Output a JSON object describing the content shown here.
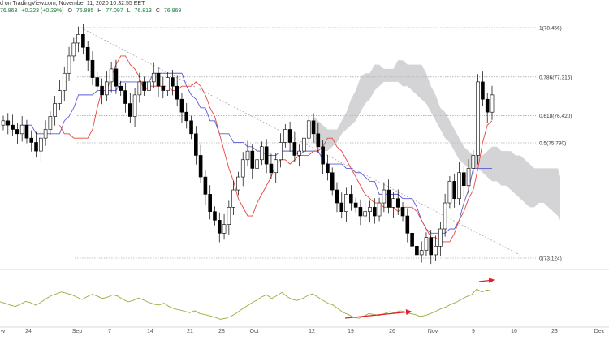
{
  "header": {
    "published": "d on TradingView.com, November 11, 2020 10:32:55 EET",
    "ohlc": {
      "o_val": "76.863",
      "change": "+0.223 (+0.29%)",
      "o_label": "O",
      "o2": "76.895",
      "h_label": "H",
      "h": "77.097",
      "l_label": "L",
      "l": "76.813",
      "c_label": "C",
      "c": "76.869"
    }
  },
  "chart_data": {
    "type": "candlestick",
    "x_ticks": [
      "24",
      "Sep",
      "7",
      "14",
      "21",
      "28",
      "Oct",
      "12",
      "19",
      "26",
      "Nov",
      "9",
      "16",
      "23",
      "Dec"
    ],
    "axis_left_label": "w",
    "fib_levels": [
      {
        "label": "1(78.456)",
        "value": 78.456
      },
      {
        "label": "0.786(77.315)",
        "value": 77.315
      },
      {
        "label": "0.618(76.420)",
        "value": 76.42
      },
      {
        "label": "0.5(75.790)",
        "value": 75.79
      },
      {
        "label": "0(73.124)",
        "value": 73.124
      }
    ],
    "price_close": [
      76.3,
      76.2,
      76.1,
      76.0,
      76.2,
      75.9,
      75.8,
      75.6,
      75.9,
      76.1,
      76.4,
      76.7,
      77.0,
      77.4,
      77.8,
      78.1,
      78.3,
      78.0,
      77.7,
      77.3,
      77.1,
      76.9,
      77.2,
      77.5,
      77.1,
      77.0,
      76.7,
      76.4,
      76.9,
      77.2,
      77.0,
      77.2,
      77.4,
      77.1,
      77.0,
      77.3,
      77.1,
      76.8,
      76.5,
      76.3,
      76.0,
      75.5,
      75.0,
      74.6,
      74.2,
      74.0,
      73.7,
      73.9,
      74.3,
      74.7,
      75.0,
      75.4,
      75.6,
      75.2,
      75.4,
      75.7,
      75.3,
      75.1,
      75.4,
      75.8,
      76.1,
      75.8,
      75.5,
      75.6,
      75.9,
      76.3,
      76.0,
      75.7,
      75.3,
      75.1,
      74.7,
      74.4,
      74.2,
      74.6,
      74.4,
      74.3,
      74.1,
      74.2,
      74.3,
      74.1,
      74.4,
      74.7,
      74.3,
      74.5,
      74.3,
      74.1,
      73.7,
      73.4,
      73.2,
      73.3,
      73.6,
      73.2,
      73.4,
      73.8,
      74.4,
      74.9,
      74.5,
      75.1,
      74.8,
      75.2,
      75.5,
      77.2,
      76.8,
      76.5,
      76.9
    ],
    "kijun": [
      76.2,
      76.2,
      76.2,
      76.0,
      76.0,
      76.0,
      76.0,
      76.0,
      76.0,
      76.3,
      76.4,
      76.6,
      76.9,
      76.9,
      76.9,
      76.9,
      77.0,
      77.0,
      77.0,
      77.0,
      77.0,
      77.2,
      77.2,
      77.2,
      77.2,
      77.2,
      77.2,
      77.2,
      77.4,
      77.4,
      77.4,
      77.4,
      77.4,
      77.4,
      77.4,
      77.1,
      76.9,
      76.8,
      76.6,
      76.6,
      76.3,
      76.3,
      76.0,
      76.0,
      76.0,
      75.8,
      75.8,
      75.8,
      75.7,
      75.7,
      75.6,
      75.6,
      75.5,
      75.5,
      75.5,
      75.6,
      75.6,
      75.6,
      75.6,
      75.5,
      75.6,
      75.6,
      75.6,
      75.6,
      75.4,
      75.3,
      75.3,
      75.3,
      75.3,
      75.2,
      75.2,
      75.1,
      75.1,
      75.0,
      74.9,
      74.9,
      74.6,
      74.6,
      74.6,
      74.6,
      74.6,
      74.5,
      74.5,
      74.5,
      74.3,
      74.0,
      73.8,
      73.7,
      73.7,
      73.7,
      73.7,
      73.8,
      73.8,
      74.0,
      74.4,
      74.7,
      75.2,
      75.2,
      75.2,
      75.2,
      75.2
    ],
    "tenkan": [
      76.2,
      76.0,
      76.0,
      75.9,
      75.9,
      75.9,
      75.9,
      76.1,
      76.6,
      77.0,
      77.0,
      77.3,
      77.6,
      77.8,
      77.8,
      77.6,
      77.5,
      77.3,
      77.0,
      77.1,
      77.1,
      77.1,
      77.1,
      77.1,
      77.0,
      77.0,
      77.1,
      77.1,
      77.1,
      77.2,
      77.1,
      76.9,
      76.6,
      76.4,
      76.0,
      75.6,
      75.2,
      74.9,
      74.5,
      74.3,
      74.1,
      74.1,
      74.4,
      74.6,
      74.8,
      75.0,
      75.3,
      75.4,
      75.4,
      75.3,
      75.4,
      75.5,
      75.5,
      75.5,
      75.6,
      75.6,
      75.7,
      75.9,
      75.9,
      75.7,
      75.6,
      75.4,
      75.2,
      75.0,
      74.8,
      74.6,
      74.5,
      74.4,
      74.4,
      74.3,
      74.3,
      74.3,
      74.2,
      74.3,
      74.3,
      74.3,
      74.2,
      74.0,
      73.8,
      73.6,
      73.6,
      73.5,
      73.5,
      73.5,
      73.7,
      74.0,
      74.2,
      74.5,
      74.7,
      75.2,
      75.8,
      76.2,
      76.3
    ],
    "cloud_top": [
      76.4,
      76.3,
      76.2,
      76.1,
      76.1,
      76.1,
      76.3,
      76.5,
      76.8,
      77.0,
      77.3,
      77.4,
      77.4,
      77.6,
      77.6,
      77.5,
      77.5,
      77.5,
      77.7,
      77.7,
      77.6,
      77.6,
      77.6,
      77.6,
      77.4,
      77.1,
      76.9,
      76.6,
      76.5,
      76.3,
      76.1,
      75.9,
      75.7,
      75.6,
      75.5,
      75.5,
      75.5,
      75.6,
      75.7,
      75.7,
      75.6,
      75.6,
      75.6,
      75.5,
      75.5,
      75.4,
      75.3,
      75.2,
      75.2,
      75.2,
      75.2,
      75.2,
      75.2,
      75.0,
      74.8,
      74.6,
      74.4,
      74.3,
      74.4,
      74.6,
      74.9,
      75.2,
      75.5
    ],
    "cloud_bottom": [
      75.8,
      75.7,
      75.6,
      75.6,
      75.7,
      75.8,
      76.0,
      76.1,
      76.2,
      76.3,
      76.5,
      76.7,
      76.8,
      77.0,
      77.1,
      77.2,
      77.2,
      77.2,
      77.2,
      77.1,
      77.1,
      77.0,
      76.9,
      76.8,
      76.7,
      76.5,
      76.3,
      76.1,
      75.9,
      75.8,
      75.6,
      75.4,
      75.3,
      75.2,
      75.2,
      75.2,
      75.1,
      75.0,
      74.9,
      74.9,
      74.8,
      74.8,
      74.7,
      74.6,
      74.5,
      74.4,
      74.3,
      74.3,
      74.4,
      74.4,
      74.3,
      74.2,
      74.1,
      74.0,
      74.0,
      73.9,
      73.9,
      73.9,
      74.0,
      74.2,
      74.6,
      75.0,
      75.4
    ],
    "trendline": {
      "from": [
        1,
        78.45
      ],
      "to": [
        93,
        73.2
      ]
    },
    "oscillator": [
      45,
      42,
      38,
      35,
      40,
      46,
      43,
      38,
      44,
      52,
      58,
      62,
      66,
      63,
      60,
      55,
      50,
      56,
      61,
      57,
      52,
      55,
      60,
      57,
      50,
      45,
      48,
      53,
      49,
      44,
      40,
      38,
      42,
      35,
      30,
      28,
      25,
      22,
      26,
      20,
      18,
      15,
      12,
      8,
      10,
      14,
      20,
      28,
      35,
      42,
      48,
      55,
      60,
      52,
      58,
      65,
      56,
      50,
      48,
      52,
      58,
      62,
      55,
      48,
      42,
      38,
      30,
      22,
      18,
      12,
      10,
      15,
      20,
      18,
      16,
      20,
      24,
      22,
      26,
      24,
      20,
      18,
      14,
      16,
      20,
      25,
      30,
      34,
      40,
      44,
      50,
      56,
      60,
      72,
      66,
      70,
      68
    ],
    "osc_range": [
      0,
      100
    ],
    "colors": {
      "up_candle": "#ffffff",
      "down_candle": "#000000",
      "tenkan": "#e8453c",
      "kijun": "#5b5bd6",
      "cloud": "#b7b7bd",
      "fib": "#8c8c8c",
      "oscillator": "#9aab3c",
      "arrow": "#e02020"
    }
  }
}
